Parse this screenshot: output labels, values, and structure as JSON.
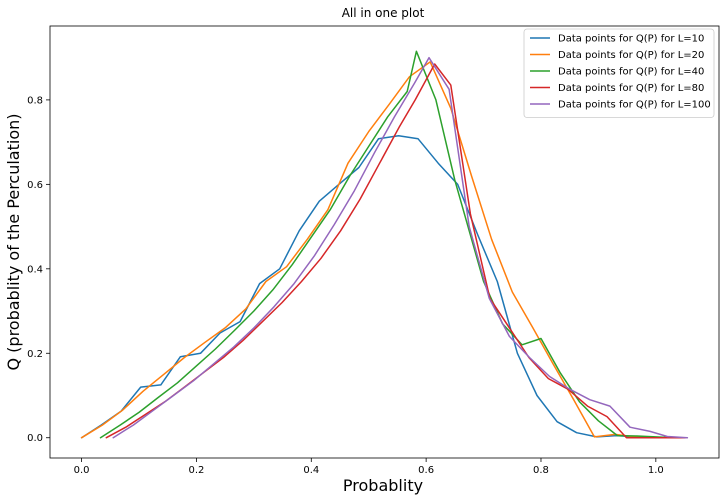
{
  "chart_data": {
    "type": "line",
    "title": "All in one plot",
    "xlabel": "Probablity",
    "ylabel": "Q (probablity of the Perculation)",
    "xlim": [
      -0.055,
      1.11
    ],
    "ylim": [
      -0.048,
      0.975
    ],
    "xticks": [
      0.0,
      0.2,
      0.4,
      0.6,
      0.8,
      1.0
    ],
    "xtick_labels": [
      "0.0",
      "0.2",
      "0.4",
      "0.6",
      "0.8",
      "1.0"
    ],
    "yticks": [
      0.0,
      0.2,
      0.4,
      0.6,
      0.8
    ],
    "ytick_labels": [
      "0.0",
      "0.2",
      "0.4",
      "0.6",
      "0.8"
    ],
    "grid": false,
    "legend_position": "top-right",
    "series": [
      {
        "name": "Data points for Q(P) for L=10",
        "color": "#1f77b4",
        "x": [
          0.0,
          0.034,
          0.069,
          0.103,
          0.138,
          0.172,
          0.207,
          0.241,
          0.276,
          0.31,
          0.345,
          0.379,
          0.414,
          0.448,
          0.483,
          0.517,
          0.552,
          0.586,
          0.621,
          0.655,
          0.69,
          0.724,
          0.759,
          0.793,
          0.828,
          0.862,
          0.897,
          0.931,
          0.966,
          1.0
        ],
        "y": [
          0.0,
          0.03,
          0.063,
          0.12,
          0.125,
          0.192,
          0.2,
          0.248,
          0.275,
          0.365,
          0.4,
          0.49,
          0.56,
          0.6,
          0.64,
          0.708,
          0.715,
          0.708,
          0.65,
          0.6,
          0.48,
          0.37,
          0.2,
          0.1,
          0.038,
          0.012,
          0.002,
          0.005,
          0.002,
          0.0
        ]
      },
      {
        "name": "Data points for Q(P) for L=20",
        "color": "#ff7f0e",
        "x": [
          0.0,
          0.036,
          0.071,
          0.107,
          0.143,
          0.179,
          0.214,
          0.25,
          0.286,
          0.321,
          0.357,
          0.393,
          0.429,
          0.464,
          0.5,
          0.536,
          0.571,
          0.607,
          0.643,
          0.679,
          0.714,
          0.75,
          0.786,
          0.821,
          0.857,
          0.893,
          0.929,
          0.964,
          1.0
        ],
        "y": [
          0.0,
          0.03,
          0.065,
          0.11,
          0.15,
          0.19,
          0.225,
          0.26,
          0.305,
          0.37,
          0.405,
          0.47,
          0.54,
          0.65,
          0.725,
          0.79,
          0.855,
          0.89,
          0.78,
          0.62,
          0.47,
          0.345,
          0.26,
          0.175,
          0.09,
          0.002,
          0.008,
          0.002,
          0.0
        ]
      },
      {
        "name": "Data points for Q(P) for L=40",
        "color": "#2ca02c",
        "x": [
          0.033,
          0.067,
          0.1,
          0.133,
          0.167,
          0.2,
          0.233,
          0.267,
          0.3,
          0.333,
          0.367,
          0.4,
          0.433,
          0.467,
          0.5,
          0.533,
          0.567,
          0.583,
          0.617,
          0.65,
          0.7,
          0.733,
          0.767,
          0.8,
          0.833,
          0.867,
          0.9,
          0.933,
          0.967,
          1.0,
          1.033
        ],
        "y": [
          0.0,
          0.03,
          0.06,
          0.095,
          0.13,
          0.17,
          0.21,
          0.255,
          0.3,
          0.35,
          0.41,
          0.475,
          0.54,
          0.62,
          0.69,
          0.76,
          0.82,
          0.915,
          0.8,
          0.61,
          0.37,
          0.27,
          0.22,
          0.235,
          0.155,
          0.085,
          0.04,
          0.005,
          0.004,
          0.002,
          0.0
        ]
      },
      {
        "name": "Data points for Q(P) for L=80",
        "color": "#d62728",
        "x": [
          0.043,
          0.077,
          0.111,
          0.145,
          0.179,
          0.213,
          0.247,
          0.281,
          0.315,
          0.349,
          0.383,
          0.417,
          0.451,
          0.485,
          0.519,
          0.553,
          0.581,
          0.615,
          0.643,
          0.677,
          0.711,
          0.745,
          0.779,
          0.813,
          0.847,
          0.881,
          0.915,
          0.949,
          0.983,
          1.017,
          1.051
        ],
        "y": [
          0.0,
          0.025,
          0.055,
          0.085,
          0.12,
          0.155,
          0.19,
          0.23,
          0.275,
          0.32,
          0.37,
          0.425,
          0.49,
          0.565,
          0.65,
          0.735,
          0.8,
          0.885,
          0.835,
          0.53,
          0.33,
          0.26,
          0.19,
          0.14,
          0.115,
          0.075,
          0.05,
          0.0,
          0.0,
          0.0,
          0.0
        ]
      },
      {
        "name": "Data points for Q(P) for L=100",
        "color": "#9467bd",
        "x": [
          0.055,
          0.09,
          0.125,
          0.16,
          0.195,
          0.23,
          0.265,
          0.3,
          0.335,
          0.37,
          0.405,
          0.44,
          0.475,
          0.51,
          0.545,
          0.58,
          0.605,
          0.64,
          0.675,
          0.71,
          0.745,
          0.78,
          0.815,
          0.85,
          0.885,
          0.92,
          0.955,
          0.99,
          1.02,
          1.055
        ],
        "y": [
          0.0,
          0.03,
          0.065,
          0.1,
          0.135,
          0.175,
          0.215,
          0.26,
          0.31,
          0.365,
          0.43,
          0.505,
          0.585,
          0.675,
          0.76,
          0.84,
          0.9,
          0.825,
          0.5,
          0.33,
          0.24,
          0.19,
          0.145,
          0.115,
          0.09,
          0.075,
          0.025,
          0.015,
          0.003,
          0.0
        ]
      }
    ]
  }
}
